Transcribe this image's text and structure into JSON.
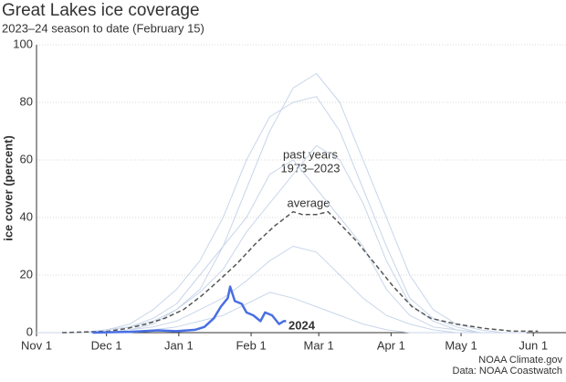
{
  "chart_data": {
    "type": "line",
    "title": "Great Lakes ice coverage",
    "subtitle": "2023–24 season to date (February 15)",
    "y_label": "ice cover (percent)",
    "credits": [
      "NOAA Climate.gov",
      "Data: NOAA Coastwatch"
    ],
    "xlim": [
      0,
      227
    ],
    "xticks": [
      {
        "value": 0,
        "label": "Nov 1"
      },
      {
        "value": 30,
        "label": "Dec 1"
      },
      {
        "value": 61,
        "label": "Jan 1"
      },
      {
        "value": 92,
        "label": "Feb 1"
      },
      {
        "value": 121,
        "label": "Mar 1"
      },
      {
        "value": 152,
        "label": "Apr 1"
      },
      {
        "value": 182,
        "label": "May 1"
      },
      {
        "value": 213,
        "label": "Jun 1"
      }
    ],
    "ylim": [
      0,
      100
    ],
    "yticks": [
      0,
      20,
      40,
      60,
      80,
      100
    ],
    "grid": true,
    "past_years": {
      "label": [
        "past years",
        "1973–2023"
      ],
      "color": "#c9d6ea",
      "x": [
        0,
        10,
        20,
        30,
        40,
        50,
        60,
        70,
        80,
        90,
        100,
        110,
        120,
        130,
        140,
        150,
        160,
        170,
        180,
        190,
        200,
        210
      ],
      "series": [
        {
          "values": [
            0,
            0,
            0,
            0,
            1,
            3,
            8,
            15,
            30,
            50,
            70,
            85,
            90,
            80,
            60,
            40,
            20,
            8,
            3,
            1,
            0,
            0
          ]
        },
        {
          "values": [
            0,
            0,
            0,
            1,
            2,
            5,
            10,
            20,
            30,
            40,
            55,
            60,
            50,
            40,
            30,
            15,
            6,
            2,
            1,
            0,
            0,
            0
          ]
        },
        {
          "values": [
            0,
            0,
            0,
            0,
            1,
            2,
            4,
            8,
            12,
            18,
            25,
            30,
            28,
            20,
            12,
            6,
            3,
            1,
            0,
            0,
            0,
            0
          ]
        },
        {
          "values": [
            0,
            0,
            0,
            1,
            3,
            8,
            15,
            25,
            40,
            60,
            75,
            80,
            82,
            70,
            50,
            30,
            12,
            5,
            2,
            0,
            0,
            0
          ]
        },
        {
          "values": [
            0,
            0,
            0,
            0,
            0,
            1,
            2,
            4,
            6,
            10,
            14,
            12,
            9,
            6,
            3,
            1,
            0,
            0,
            0,
            0,
            0,
            0
          ]
        },
        {
          "values": [
            0,
            0,
            0,
            1,
            2,
            4,
            8,
            14,
            22,
            35,
            45,
            55,
            65,
            60,
            45,
            25,
            10,
            4,
            1,
            0,
            0,
            0
          ]
        }
      ]
    },
    "series": [
      {
        "name": "average",
        "color": "#555555",
        "dashed": true,
        "x": [
          11,
          31,
          39,
          47,
          55,
          63,
          71,
          78,
          86,
          94,
          102,
          110,
          114,
          120,
          125,
          131,
          137,
          145,
          153,
          161,
          169,
          180,
          192,
          204,
          215
        ],
        "values": [
          0,
          0.5,
          1.5,
          3,
          5,
          8,
          13,
          18,
          24,
          31,
          37,
          42,
          41,
          41,
          42,
          37,
          32,
          24,
          16,
          9,
          5,
          3,
          1.5,
          0.5,
          0.5
        ]
      },
      {
        "name": "2024",
        "color": "#4a6fe3",
        "dashed": false,
        "x": [
          24,
          40,
          52,
          60,
          68,
          72,
          76,
          79,
          82,
          83,
          85,
          88,
          90,
          93,
          96,
          98,
          101,
          104,
          106,
          107
        ],
        "values": [
          0,
          0.3,
          0.8,
          0.5,
          1,
          2,
          5,
          9,
          12,
          16,
          11,
          10,
          7,
          6,
          4,
          7,
          6,
          3,
          4,
          4
        ]
      }
    ]
  }
}
